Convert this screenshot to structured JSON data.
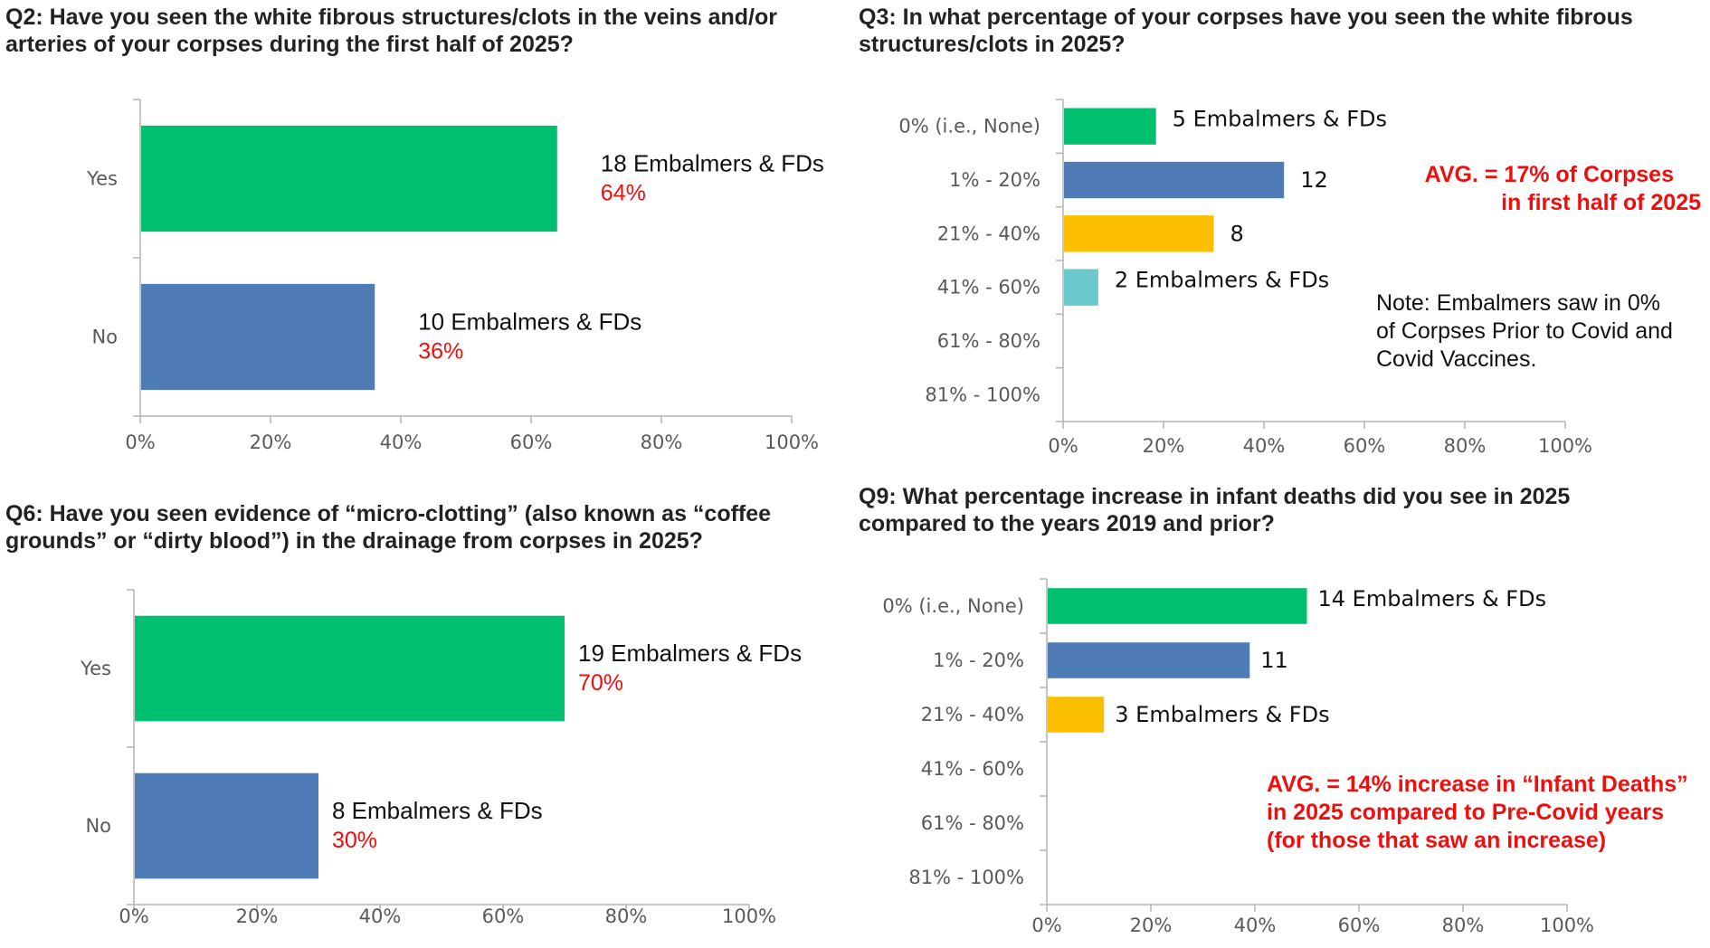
{
  "colors": {
    "green": "#00bf6f",
    "blue": "#4f7cb6",
    "yellow": "#fcbf00",
    "teal": "#6ac8cc",
    "red": "#f20d0d",
    "axis": "#b3b3b3"
  },
  "panels": {
    "q2": {
      "title": "Q2: Have you seen the white fibrous structures/clots in the veins and/or arteries of your corpses during the first half of 2025?"
    },
    "q3": {
      "title": "Q3: In what percentage of your corpses have you seen the white fibrous structures/clots in 2025?",
      "avg_lines": [
        "AVG. = 17% of Corpses",
        "in first half of 2025"
      ],
      "note_lines": [
        "Note:  Embalmers saw in 0%",
        "of Corpses Prior to Covid and",
        "Covid Vaccines."
      ]
    },
    "q6": {
      "title": "Q6: Have you seen evidence of “micro-clotting” (also known as “coffee grounds” or “dirty blood”) in the drainage from corpses in 2025?"
    },
    "q9": {
      "title": "Q9: What percentage increase in infant deaths did you see in 2025 compared to the years 2019 and prior?",
      "avg_lines": [
        "AVG. = 14% increase in “Infant Deaths”",
        "in 2025 compared to Pre-Covid years",
        "(for those that saw an increase)"
      ]
    }
  },
  "chart_data": [
    {
      "id": "q2",
      "type": "bar",
      "orientation": "horizontal",
      "title": "Q2: Have you seen the white fibrous structures/clots in the veins and/or arteries of your corpses during the first half of 2025?",
      "categories": [
        "Yes",
        "No"
      ],
      "values": [
        64,
        36
      ],
      "counts": [
        "18 Embalmers & FDs",
        "10 Embalmers & FDs"
      ],
      "percent_labels": [
        "64%",
        "36%"
      ],
      "colors": [
        "#00bf6f",
        "#4f7cb6"
      ],
      "xlim": [
        0,
        100
      ],
      "xticks": [
        "0%",
        "20%",
        "40%",
        "60%",
        "80%",
        "100%"
      ],
      "grid": false
    },
    {
      "id": "q3",
      "type": "bar",
      "orientation": "horizontal",
      "title": "Q3: In what percentage of your corpses have you seen the white fibrous structures/clots in 2025?",
      "categories": [
        "0% (i.e., None)",
        "1% - 20%",
        "21% - 40%",
        "41% - 60%",
        "61% - 80%",
        "81% - 100%"
      ],
      "values": [
        18.5,
        44,
        30,
        7,
        0,
        0
      ],
      "counts": [
        "5 Embalmers & FDs",
        "12",
        "8",
        "2 Embalmers & FDs",
        "",
        ""
      ],
      "colors": [
        "#00bf6f",
        "#4f7cb6",
        "#fcbf00",
        "#6ac8cc",
        "#6ac8cc",
        "#6ac8cc"
      ],
      "xlim": [
        0,
        100
      ],
      "xticks": [
        "0%",
        "20%",
        "40%",
        "60%",
        "80%",
        "100%"
      ],
      "grid": false
    },
    {
      "id": "q6",
      "type": "bar",
      "orientation": "horizontal",
      "title": "Q6: Have you seen evidence of “micro-clotting” (also known as “coffee grounds” or “dirty blood”) in the drainage from corpses in 2025?",
      "categories": [
        "Yes",
        "No"
      ],
      "values": [
        70,
        30
      ],
      "counts": [
        "19 Embalmers & FDs",
        "8 Embalmers & FDs"
      ],
      "percent_labels": [
        "70%",
        "30%"
      ],
      "colors": [
        "#00bf6f",
        "#4f7cb6"
      ],
      "xlim": [
        0,
        100
      ],
      "xticks": [
        "0%",
        "20%",
        "40%",
        "60%",
        "80%",
        "100%"
      ],
      "grid": false
    },
    {
      "id": "q9",
      "type": "bar",
      "orientation": "horizontal",
      "title": "Q9: What percentage increase in infant deaths did you see in 2025 compared to the years 2019 and prior?",
      "categories": [
        "0% (i.e., None)",
        "1% - 20%",
        "21% - 40%",
        "41% - 60%",
        "61% - 80%",
        "81% - 100%"
      ],
      "values": [
        50,
        39,
        11,
        0,
        0,
        0
      ],
      "counts": [
        "14 Embalmers & FDs",
        "11",
        "3 Embalmers & FDs",
        "",
        "",
        ""
      ],
      "colors": [
        "#00bf6f",
        "#4f7cb6",
        "#fcbf00",
        "#fcbf00",
        "#fcbf00",
        "#fcbf00"
      ],
      "xlim": [
        0,
        100
      ],
      "xticks": [
        "0%",
        "20%",
        "40%",
        "60%",
        "80%",
        "100%"
      ],
      "grid": false
    }
  ]
}
